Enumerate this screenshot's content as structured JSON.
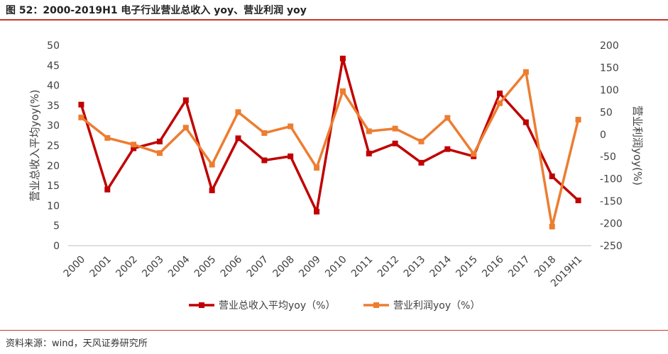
{
  "header": {
    "title": "图 52：2000-2019H1 电子行业营业总收入 yoy、营业利润 yoy"
  },
  "footer": {
    "source": "资料来源：wind，天风证券研究所"
  },
  "colors": {
    "accent_rule": "#c0392b",
    "series1": "#c00000",
    "series2": "#ed7d31"
  },
  "chart_data": {
    "type": "line",
    "categories": [
      "2000",
      "2001",
      "2002",
      "2003",
      "2004",
      "2005",
      "2006",
      "2007",
      "2008",
      "2009",
      "2010",
      "2011",
      "2012",
      "2013",
      "2014",
      "2015",
      "2016",
      "2017",
      "2018",
      "2019H1"
    ],
    "ylabel": "营业总收入平均yoy(%)",
    "y2label": "营业利润yoy(%)",
    "ylim": [
      0,
      50
    ],
    "y2lim": [
      -250,
      200
    ],
    "yticks": [
      0,
      5,
      10,
      15,
      20,
      25,
      30,
      35,
      40,
      45,
      50
    ],
    "y2ticks": [
      -250,
      -200,
      -150,
      -100,
      -50,
      0,
      50,
      100,
      150,
      200
    ],
    "grid": false,
    "legend_position": "bottom",
    "series": [
      {
        "name": "营业总收入平均yoy（%）",
        "axis": "left",
        "marker": "square",
        "values": [
          35.2,
          14.0,
          24.3,
          26.0,
          36.3,
          13.8,
          26.8,
          21.3,
          22.3,
          8.5,
          46.7,
          23.0,
          25.5,
          20.7,
          24.1,
          22.3,
          38.0,
          30.8,
          17.3,
          11.3
        ]
      },
      {
        "name": "营业利润yoy（%）",
        "axis": "right",
        "marker": "square",
        "values": [
          38,
          -8,
          -23,
          -42,
          15,
          -68,
          50,
          3,
          18,
          -75,
          97,
          7,
          13,
          -16,
          37,
          -44,
          70,
          140,
          -207,
          33
        ]
      }
    ]
  }
}
